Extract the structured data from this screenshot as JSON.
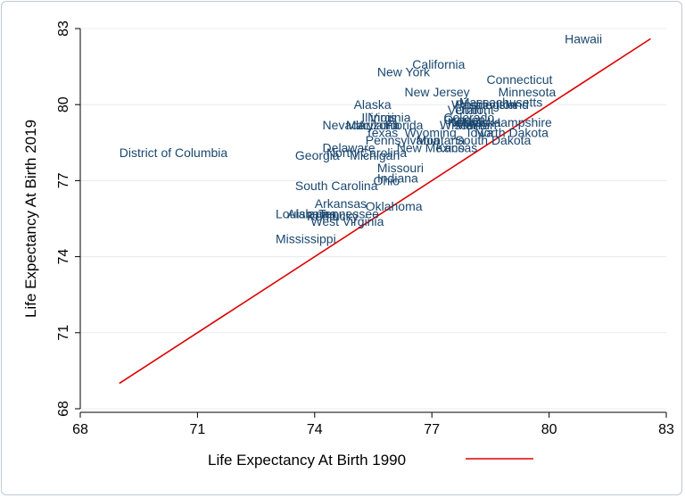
{
  "chart_data": {
    "type": "scatter",
    "title": "",
    "xlabel": "Life Expectancy At Birth 1990",
    "ylabel": "Life Expectancy At Birth 2019",
    "xlim": [
      68,
      83
    ],
    "ylim": [
      68,
      83
    ],
    "xticks": [
      68,
      71,
      74,
      77,
      80,
      83
    ],
    "yticks": [
      68,
      71,
      74,
      77,
      80,
      83
    ],
    "grid": "horizontal",
    "marker": "state name label",
    "label_color": "#1a476f",
    "line_color": "#dd0000",
    "legend": {
      "position": "bottom",
      "entries": [
        {
          "label": "Life Expectancy At Birth 1990",
          "type": "line",
          "color": "#dd0000"
        }
      ]
    },
    "fit_line": {
      "x": [
        69.0,
        82.6
      ],
      "y": [
        69.0,
        82.6
      ]
    },
    "points": [
      {
        "label": "Hawaii",
        "x": 80.4,
        "y": 82.6
      },
      {
        "label": "California",
        "x": 76.5,
        "y": 81.6
      },
      {
        "label": "New York",
        "x": 75.6,
        "y": 81.3
      },
      {
        "label": "Connecticut",
        "x": 78.4,
        "y": 81.0
      },
      {
        "label": "New Jersey",
        "x": 76.3,
        "y": 80.5
      },
      {
        "label": "Minnesota",
        "x": 78.7,
        "y": 80.5
      },
      {
        "label": "Massachusetts",
        "x": 77.7,
        "y": 80.1
      },
      {
        "label": "Washington",
        "x": 77.5,
        "y": 80.0
      },
      {
        "label": "Rhode Island",
        "x": 77.6,
        "y": 80.0
      },
      {
        "label": "Alaska",
        "x": 75.0,
        "y": 80.0
      },
      {
        "label": "Vermont",
        "x": 77.4,
        "y": 79.8
      },
      {
        "label": "Utah",
        "x": 77.6,
        "y": 79.8
      },
      {
        "label": "Colorado",
        "x": 77.3,
        "y": 79.5
      },
      {
        "label": "Virginia",
        "x": 75.4,
        "y": 79.5
      },
      {
        "label": "Illinois",
        "x": 75.2,
        "y": 79.5
      },
      {
        "label": "Oregon",
        "x": 77.3,
        "y": 79.4
      },
      {
        "label": "New Hampshire",
        "x": 77.8,
        "y": 79.3
      },
      {
        "label": "Nebraska",
        "x": 77.4,
        "y": 79.3
      },
      {
        "label": "Idaho",
        "x": 77.5,
        "y": 79.3
      },
      {
        "label": "Nevada",
        "x": 74.2,
        "y": 79.2
      },
      {
        "label": "Maryland",
        "x": 74.8,
        "y": 79.2
      },
      {
        "label": "Arizona",
        "x": 75.1,
        "y": 79.2
      },
      {
        "label": "Wisconsin",
        "x": 77.2,
        "y": 79.2
      },
      {
        "label": "Florida",
        "x": 75.8,
        "y": 79.2
      },
      {
        "label": "Maine",
        "x": 77.6,
        "y": 79.2
      },
      {
        "label": "Texas",
        "x": 75.3,
        "y": 78.9
      },
      {
        "label": "Wyoming",
        "x": 76.3,
        "y": 78.9
      },
      {
        "label": "Iowa",
        "x": 77.9,
        "y": 78.9
      },
      {
        "label": "North Dakota",
        "x": 78.1,
        "y": 78.9
      },
      {
        "label": "Pennsylvania",
        "x": 75.3,
        "y": 78.6
      },
      {
        "label": "Montana",
        "x": 76.6,
        "y": 78.6
      },
      {
        "label": "South Dakota",
        "x": 77.6,
        "y": 78.6
      },
      {
        "label": "Kansas",
        "x": 77.1,
        "y": 78.3
      },
      {
        "label": "New Mexico",
        "x": 76.1,
        "y": 78.3
      },
      {
        "label": "Delaware",
        "x": 74.2,
        "y": 78.3
      },
      {
        "label": "North Carolina",
        "x": 74.3,
        "y": 78.1
      },
      {
        "label": "Georgia",
        "x": 73.5,
        "y": 78.0
      },
      {
        "label": "Michigan",
        "x": 74.9,
        "y": 78.0
      },
      {
        "label": "District of Columbia",
        "x": 69.0,
        "y": 78.1
      },
      {
        "label": "Missouri",
        "x": 75.6,
        "y": 77.5
      },
      {
        "label": "Indiana",
        "x": 75.6,
        "y": 77.1
      },
      {
        "label": "Ohio",
        "x": 75.5,
        "y": 77.0
      },
      {
        "label": "South Carolina",
        "x": 73.5,
        "y": 76.8
      },
      {
        "label": "Arkansas",
        "x": 74.0,
        "y": 76.1
      },
      {
        "label": "Oklahoma",
        "x": 75.3,
        "y": 76.0
      },
      {
        "label": "Louisiana",
        "x": 73.0,
        "y": 75.7
      },
      {
        "label": "Alabama",
        "x": 73.3,
        "y": 75.7
      },
      {
        "label": "Tennessee",
        "x": 74.1,
        "y": 75.7
      },
      {
        "label": "Kentucky",
        "x": 73.8,
        "y": 75.6
      },
      {
        "label": "West Virginia",
        "x": 73.9,
        "y": 75.4
      },
      {
        "label": "Mississippi",
        "x": 73.0,
        "y": 74.7
      }
    ]
  }
}
